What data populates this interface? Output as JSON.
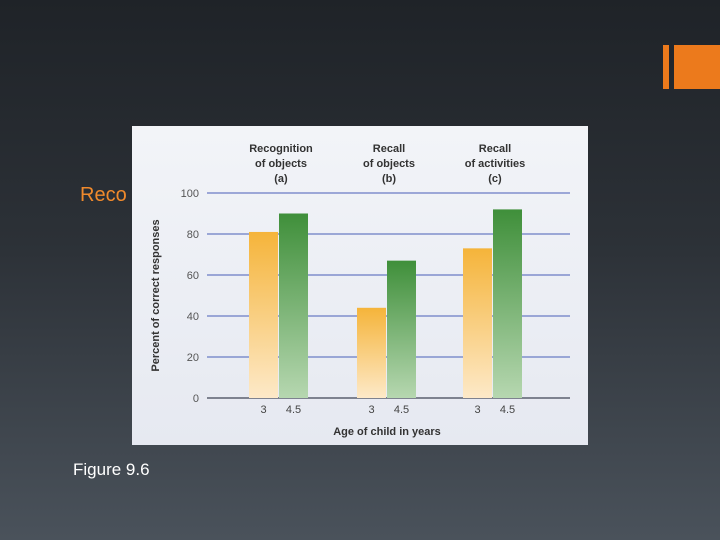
{
  "slide": {
    "heading": "Reco",
    "caption": "Figure 9.6"
  },
  "colors": {
    "accent": "#ec7a1c",
    "heading_text": "#f08a2c",
    "series_3": "#f5b43a",
    "series_4_5": "#3f8f3a",
    "gridline": "#6a7bc4"
  },
  "chart_data": {
    "type": "bar",
    "categories": [
      "Recognition of objects (a)",
      "Recall of objects (b)",
      "Recall of activities (c)"
    ],
    "category_titles": [
      [
        "Recognition",
        "of objects",
        "(a)"
      ],
      [
        "Recall",
        "of objects",
        "(b)"
      ],
      [
        "Recall",
        "of activities",
        "(c)"
      ]
    ],
    "series": [
      {
        "name": "3",
        "values": [
          81,
          44,
          73
        ]
      },
      {
        "name": "4.5",
        "values": [
          90,
          67,
          92
        ]
      }
    ],
    "xlabel": "Age of child in years",
    "ylabel": "Percent of correct responses",
    "ylim": [
      0,
      100
    ],
    "yticks": [
      0,
      20,
      40,
      60,
      80,
      100
    ],
    "grid": true
  }
}
